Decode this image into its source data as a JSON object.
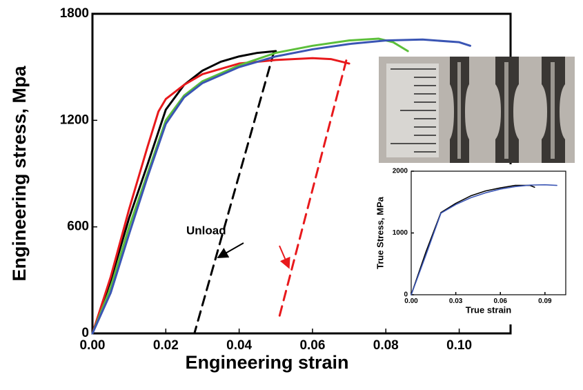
{
  "chart_data": [
    {
      "type": "line",
      "xlabel": "Engineering strain",
      "ylabel": "Engineering stress, Mpa",
      "xlim": [
        0,
        0.114
      ],
      "ylim": [
        0,
        1800
      ],
      "xticks": [
        {
          "value": 0,
          "label": "0.00"
        },
        {
          "value": 0.02,
          "label": "0.02"
        },
        {
          "value": 0.04,
          "label": "0.04"
        },
        {
          "value": 0.06,
          "label": "0.06"
        },
        {
          "value": 0.08,
          "label": "0.08"
        },
        {
          "value": 0.1,
          "label": "0.10"
        }
      ],
      "yticks": [
        0,
        600,
        1200,
        1800
      ],
      "annotation": "Unload",
      "series": [
        {
          "color": "#000000",
          "x": [
            0,
            0.005,
            0.01,
            0.015,
            0.02,
            0.025,
            0.03,
            0.035,
            0.04,
            0.045,
            0.05
          ],
          "values": [
            0,
            300,
            650,
            950,
            1260,
            1400,
            1480,
            1530,
            1560,
            1580,
            1590
          ]
        },
        {
          "color": "#000000",
          "dash": true,
          "x": [
            0.0495,
            0.0278
          ],
          "values": [
            1587,
            0
          ]
        },
        {
          "color": "#e8191c",
          "x": [
            0,
            0.005,
            0.01,
            0.015,
            0.018,
            0.02,
            0.025,
            0.03,
            0.04,
            0.05,
            0.06,
            0.065,
            0.07
          ],
          "values": [
            0,
            320,
            700,
            1050,
            1250,
            1320,
            1400,
            1460,
            1520,
            1540,
            1550,
            1545,
            1520
          ]
        },
        {
          "color": "#e8191c",
          "dash": true,
          "x": [
            0.0692,
            0.0508
          ],
          "values": [
            1537,
            82
          ]
        },
        {
          "color": "#5cbf3a",
          "x": [
            0,
            0.005,
            0.01,
            0.015,
            0.02,
            0.025,
            0.03,
            0.04,
            0.05,
            0.06,
            0.07,
            0.078,
            0.082,
            0.086
          ],
          "values": [
            0,
            260,
            600,
            900,
            1200,
            1340,
            1420,
            1510,
            1580,
            1620,
            1650,
            1660,
            1640,
            1590
          ]
        },
        {
          "color": "#3a55b4",
          "x": [
            0,
            0.005,
            0.01,
            0.015,
            0.02,
            0.025,
            0.03,
            0.04,
            0.05,
            0.06,
            0.07,
            0.08,
            0.09,
            0.1,
            0.103
          ],
          "values": [
            0,
            230,
            560,
            880,
            1180,
            1330,
            1410,
            1500,
            1560,
            1600,
            1630,
            1650,
            1655,
            1640,
            1620
          ]
        }
      ]
    },
    {
      "type": "line",
      "xlabel": "True strain",
      "ylabel": "True Stress, MPa",
      "xlim": [
        0,
        0.104
      ],
      "ylim": [
        0,
        2000
      ],
      "xticks": [
        {
          "value": 0,
          "label": "0.00"
        },
        {
          "value": 0.03,
          "label": "0.03"
        },
        {
          "value": 0.06,
          "label": "0.06"
        },
        {
          "value": 0.09,
          "label": "0.09"
        }
      ],
      "yticks": [
        0,
        1000,
        2000
      ],
      "series": [
        {
          "color": "#000000",
          "x": [
            0,
            0.01,
            0.02,
            0.03,
            0.04,
            0.05,
            0.06,
            0.07,
            0.08,
            0.083
          ],
          "values": [
            0,
            700,
            1330,
            1480,
            1600,
            1680,
            1730,
            1770,
            1770,
            1740
          ]
        },
        {
          "color": "#3a55b4",
          "x": [
            0,
            0.01,
            0.02,
            0.03,
            0.04,
            0.05,
            0.06,
            0.07,
            0.08,
            0.09,
            0.098
          ],
          "values": [
            0,
            650,
            1320,
            1460,
            1570,
            1650,
            1710,
            1750,
            1775,
            1780,
            1770
          ]
        }
      ]
    }
  ]
}
